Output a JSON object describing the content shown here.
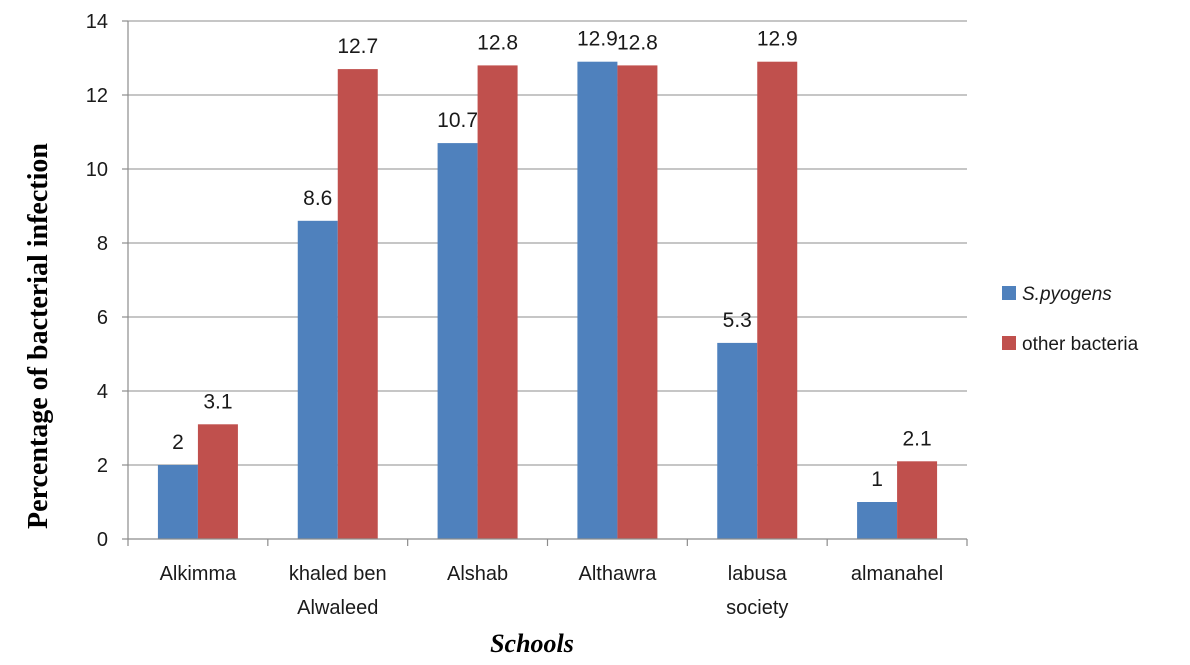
{
  "chart_data": {
    "type": "bar",
    "categories": [
      [
        "Alkimma"
      ],
      [
        "khaled ben",
        "Alwaleed"
      ],
      [
        "Alshab"
      ],
      [
        "Althawra"
      ],
      [
        "labusa",
        "society"
      ],
      [
        "almanahel"
      ]
    ],
    "series": [
      {
        "name": "S.pyogens",
        "values": [
          2,
          8.6,
          10.7,
          12.9,
          5.3,
          1
        ],
        "color": "#4f81bd",
        "italic": true
      },
      {
        "name": "other bacteria",
        "values": [
          3.1,
          12.7,
          12.8,
          12.8,
          12.9,
          2.1
        ],
        "color": "#c0504d",
        "italic": false
      }
    ],
    "ylabel": "Percentage of bacterial infection",
    "xlabel": "Schools",
    "ylim": [
      0,
      14
    ],
    "yticks": [
      0,
      2,
      4,
      6,
      8,
      10,
      12,
      14
    ],
    "grid": true,
    "legend_position": "right"
  }
}
